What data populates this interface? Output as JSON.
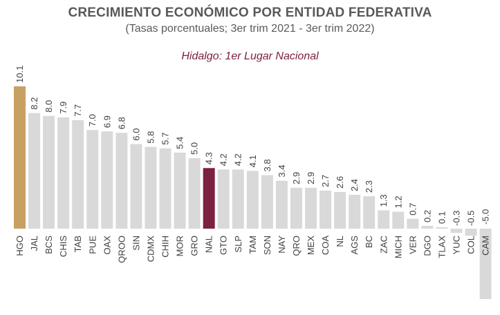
{
  "chart_data": {
    "type": "bar",
    "title": "CRECIMIENTO ECONÓMICO POR ENTIDAD FEDERATIVA",
    "subtitle": "(Tasas porcentuales; 3er trim 2021 - 3er trim 2022)",
    "annotation": "Hidalgo: 1er Lugar Nacional",
    "xlabel": "",
    "ylabel": "",
    "categories": [
      "HGO",
      "JAL",
      "BCS",
      "CHIS",
      "TAB",
      "PUE",
      "OAX",
      "QROO",
      "SIN",
      "CDMX",
      "CHIH",
      "MOR",
      "GRO",
      "NAL",
      "GTO",
      "SLP",
      "TAM",
      "SON",
      "NAY",
      "QRO",
      "MEX",
      "COA",
      "NL",
      "AGS",
      "BC",
      "ZAC",
      "MICH",
      "VER",
      "DGO",
      "TLAX",
      "YUC",
      "COL",
      "CAM"
    ],
    "values": [
      10.1,
      8.2,
      8.0,
      7.9,
      7.7,
      7.0,
      6.9,
      6.8,
      6.0,
      5.8,
      5.7,
      5.4,
      5.0,
      4.3,
      4.2,
      4.2,
      4.1,
      3.8,
      3.4,
      2.9,
      2.9,
      2.7,
      2.6,
      2.4,
      2.3,
      1.3,
      1.2,
      0.7,
      0.2,
      0.1,
      -0.3,
      -0.5,
      -5.0
    ],
    "value_labels": [
      "10.1",
      "8.2",
      "8.0",
      "7.9",
      "7.7",
      "7.0",
      "6.9",
      "6.8",
      "6.0",
      "5.8",
      "5.7",
      "5.4",
      "5.0",
      "4.3",
      "4.2",
      "4.2",
      "4.1",
      "3.8",
      "3.4",
      "2.9",
      "2.9",
      "2.7",
      "2.6",
      "2.4",
      "2.3",
      "1.3",
      "1.2",
      "0.7",
      "0.2",
      "0.1",
      "-0.3",
      "-0.5",
      "-5.0"
    ],
    "ylim": [
      -5.0,
      10.1
    ],
    "grid": false,
    "colors": {
      "default": "#d9d9d9",
      "highlight_first": "#c9a063",
      "national": "#7b2142",
      "text": "#404040",
      "title": "#595959",
      "annotation": "#7b2142"
    },
    "highlight_categories": {
      "HGO": "highlight_first",
      "NAL": "national"
    }
  }
}
